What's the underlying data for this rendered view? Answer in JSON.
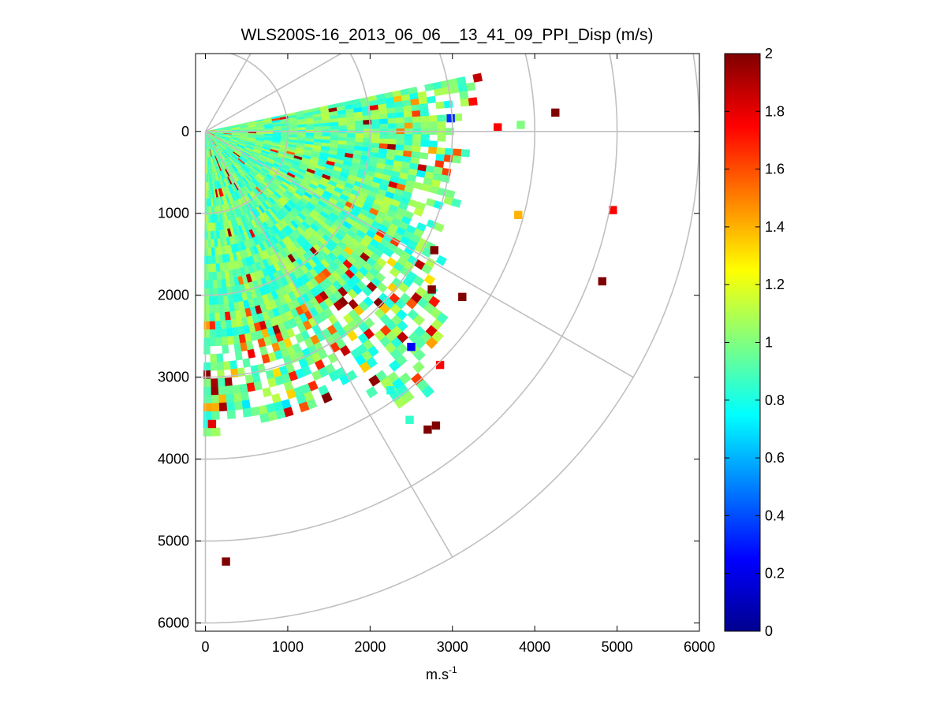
{
  "chart_data": {
    "type": "heatmap",
    "subtype": "polar-ppi-scan",
    "title": "WLS200S-16_2013_06_06__13_41_09_PPI_Disp (m/s)",
    "xlabel": "m.s",
    "xlabel_superscript": "-1",
    "ylabel": "",
    "xlim": [
      -120,
      6000
    ],
    "ylim": [
      -950,
      6100
    ],
    "y_reversed": true,
    "x_ticks": [
      0,
      1000,
      2000,
      3000,
      4000,
      5000,
      6000
    ],
    "x_tick_labels": [
      "0",
      "1000",
      "2000",
      "3000",
      "4000",
      "5000",
      "6000"
    ],
    "y_ticks": [
      0,
      1000,
      2000,
      3000,
      4000,
      5000,
      6000
    ],
    "y_tick_labels": [
      "0",
      "1000",
      "2000",
      "3000",
      "4000",
      "5000",
      "6000"
    ],
    "polar_grid": {
      "rings": [
        2000,
        4000,
        6000
      ],
      "minor_rings": [
        1000,
        3000,
        5000
      ],
      "spokes_deg": [
        -60,
        -30,
        0,
        30,
        60,
        90
      ]
    },
    "colorbar": {
      "colormap": "jet",
      "range": [
        0,
        2
      ],
      "ticks": [
        0,
        0.2,
        0.4,
        0.6,
        0.8,
        1,
        1.2,
        1.4,
        1.6,
        1.8,
        2
      ],
      "tick_labels": [
        "0",
        "0.2",
        "0.4",
        "0.6",
        "0.8",
        "1",
        "1.2",
        "1.4",
        "1.6",
        "1.8",
        "2"
      ]
    },
    "scan": {
      "angle_start_deg": -12,
      "angle_end_deg": 90,
      "gate_length_m": 100,
      "typical_value": 0.95,
      "outer_edge_by_angle": [
        {
          "angle_deg": -12,
          "range_m": 3650
        },
        {
          "angle_deg": 0,
          "range_m": 3050
        },
        {
          "angle_deg": 10,
          "range_m": 3050
        },
        {
          "angle_deg": 20,
          "range_m": 3050
        },
        {
          "angle_deg": 30,
          "range_m": 3200
        },
        {
          "angle_deg": 40,
          "range_m": 3900
        },
        {
          "angle_deg": 50,
          "range_m": 4300
        },
        {
          "angle_deg": 60,
          "range_m": 3500
        },
        {
          "angle_deg": 70,
          "range_m": 3500
        },
        {
          "angle_deg": 80,
          "range_m": 3600
        },
        {
          "angle_deg": 90,
          "range_m": 3550
        }
      ],
      "isolated_cells": [
        {
          "x": 4250,
          "y": -230,
          "value": 2.0
        },
        {
          "x": 3830,
          "y": -80,
          "value": 1.0
        },
        {
          "x": 3550,
          "y": -50,
          "value": 1.75
        },
        {
          "x": 3800,
          "y": 1020,
          "value": 1.4
        },
        {
          "x": 4950,
          "y": 960,
          "value": 1.75
        },
        {
          "x": 4820,
          "y": 1830,
          "value": 2.0
        },
        {
          "x": 3120,
          "y": 2020,
          "value": 2.0
        },
        {
          "x": 2800,
          "y": 3590,
          "value": 2.0
        },
        {
          "x": 2700,
          "y": 3640,
          "value": 2.0
        },
        {
          "x": 2480,
          "y": 3520,
          "value": 0.85
        },
        {
          "x": 2500,
          "y": 2630,
          "value": 0.25
        },
        {
          "x": 2850,
          "y": 2850,
          "value": 1.75
        },
        {
          "x": 2250,
          "y": 3160,
          "value": 0.8
        },
        {
          "x": 250,
          "y": 5250,
          "value": 2.0
        },
        {
          "x": 80,
          "y": 3570,
          "value": 1.8
        },
        {
          "x": 2780,
          "y": 1450,
          "value": 2.0
        },
        {
          "x": 2750,
          "y": 1930,
          "value": 2.0
        },
        {
          "x": 2980,
          "y": -160,
          "value": 0.35
        }
      ]
    }
  }
}
